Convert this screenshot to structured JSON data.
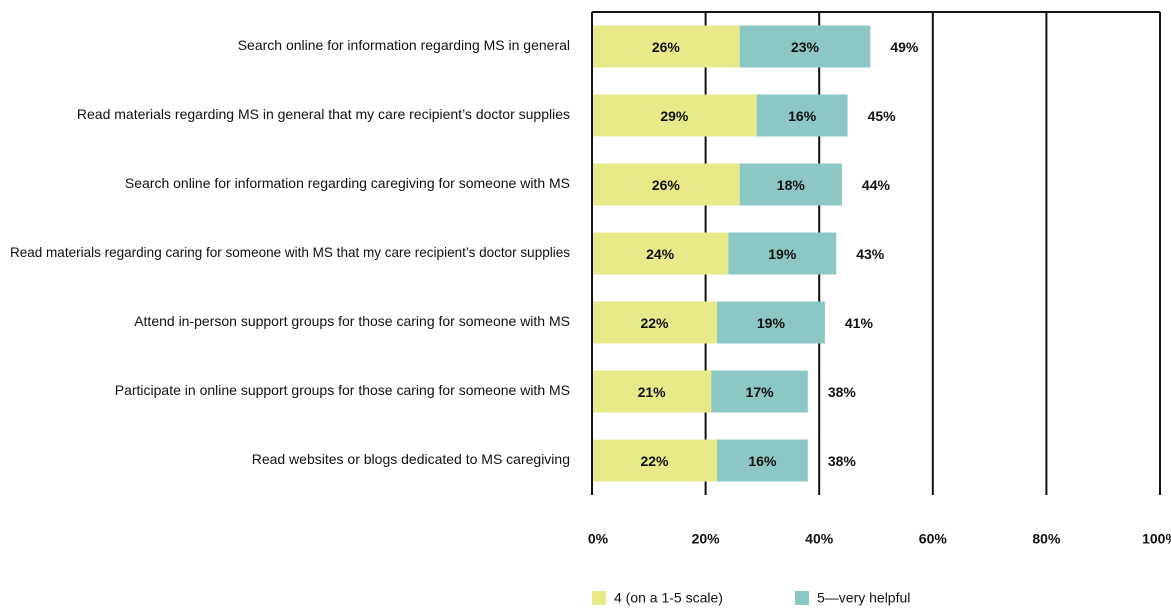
{
  "chart_data": {
    "type": "stacked-barh",
    "categories": [
      "Search online for information regarding MS in general",
      "Read materials regarding MS in general that my care recipient’s doctor supplies",
      "Search online for information regarding caregiving for someone with MS",
      "Read materials regarding caring for someone with MS that my care recipient’s doctor supplies",
      "Attend in-person support groups for those caring for someone with MS",
      "Participate in online support groups for those caring for someone with MS",
      "Read websites or blogs dedicated to MS caregiving"
    ],
    "series": [
      {
        "name": "4 (on a 1-5 scale)",
        "color": "#e8ea8a",
        "values": [
          26,
          29,
          26,
          24,
          22,
          21,
          22
        ],
        "value_labels": [
          "26%",
          "29%",
          "26%",
          "24%",
          "22%",
          "21%",
          "22%"
        ]
      },
      {
        "name": "5—very helpful",
        "color": "#8cc7c3",
        "values": [
          23,
          16,
          18,
          19,
          19,
          17,
          16
        ],
        "value_labels": [
          "23%",
          "16%",
          "18%",
          "19%",
          "19%",
          "17%",
          "16%"
        ]
      }
    ],
    "totals": [
      49,
      45,
      44,
      43,
      41,
      38,
      38
    ],
    "total_labels": [
      "49%",
      "45%",
      "44%",
      "43%",
      "41%",
      "38%",
      "38%"
    ],
    "xlim": [
      0,
      100
    ],
    "xticks": [
      {
        "value": 0,
        "label": "0%"
      },
      {
        "value": 20,
        "label": "20%"
      },
      {
        "value": 40,
        "label": "40%"
      },
      {
        "value": 60,
        "label": "60%"
      },
      {
        "value": 80,
        "label": "80%"
      },
      {
        "value": 100,
        "label": "100%"
      }
    ],
    "grid": true
  }
}
